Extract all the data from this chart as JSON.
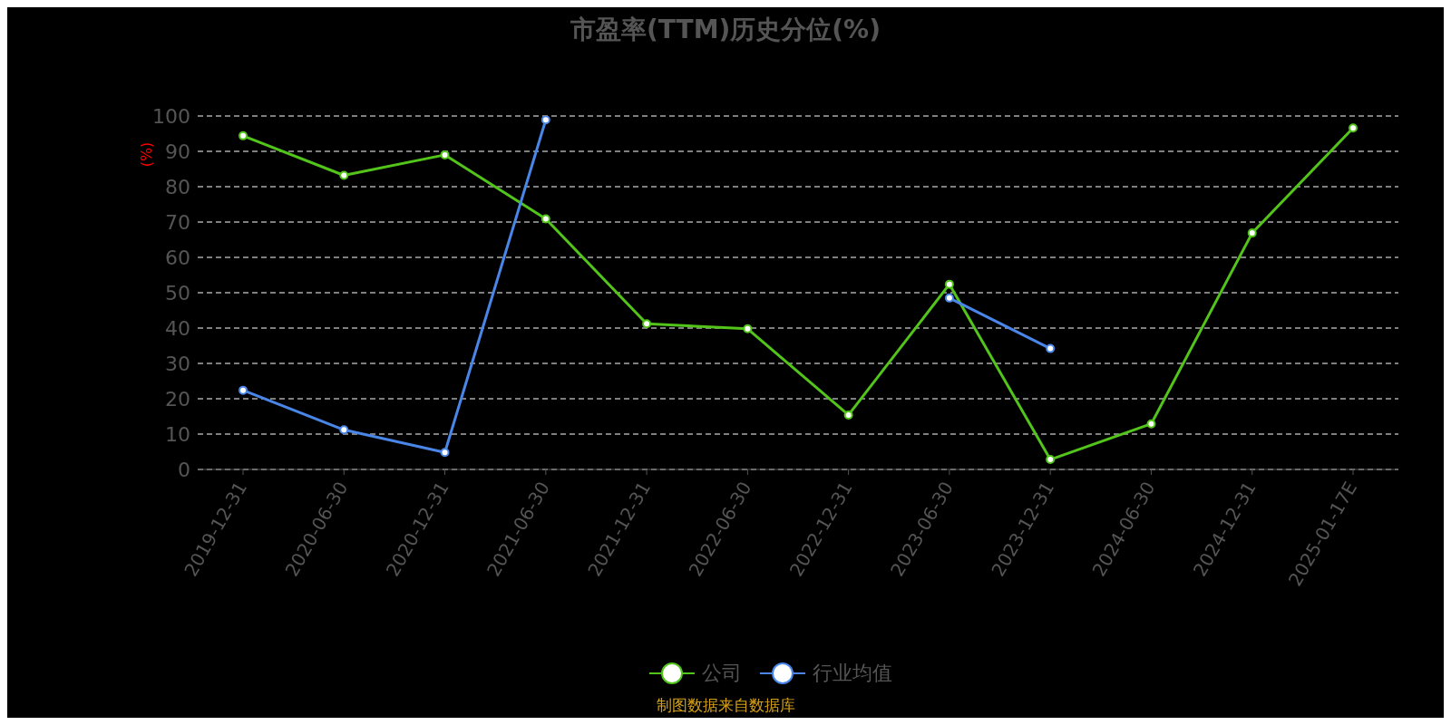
{
  "chart_data": {
    "type": "line",
    "title": "市盈率(TTM)历史分位(%)",
    "ylabel": "(%)",
    "categories": [
      "2019-12-31",
      "2020-06-30",
      "2020-12-31",
      "2021-06-30",
      "2021-12-31",
      "2022-06-30",
      "2022-12-31",
      "2023-06-30",
      "2023-12-31",
      "2024-06-30",
      "2024-12-31",
      "2025-01-17E"
    ],
    "series": [
      {
        "name": "公司",
        "color": "#52c41a",
        "values": [
          94.4,
          83.2,
          89,
          70.9,
          41.2,
          39.8,
          15.4,
          52.4,
          2.8,
          12.9,
          66.9,
          96.6
        ]
      },
      {
        "name": "行业均值",
        "color": "#4a86e8",
        "values": [
          22.4,
          11.2,
          4.8,
          98.9,
          null,
          null,
          null,
          48.5,
          34.2,
          null,
          null,
          null
        ]
      }
    ],
    "ylim": [
      0,
      100
    ],
    "yticks": [
      0,
      10,
      20,
      30,
      40,
      50,
      60,
      70,
      80,
      90,
      100
    ],
    "grid": "y",
    "legend": "bottom",
    "marker": "circle",
    "line_style": "solid",
    "annotations": [
      "制图数据来自数据库"
    ]
  }
}
